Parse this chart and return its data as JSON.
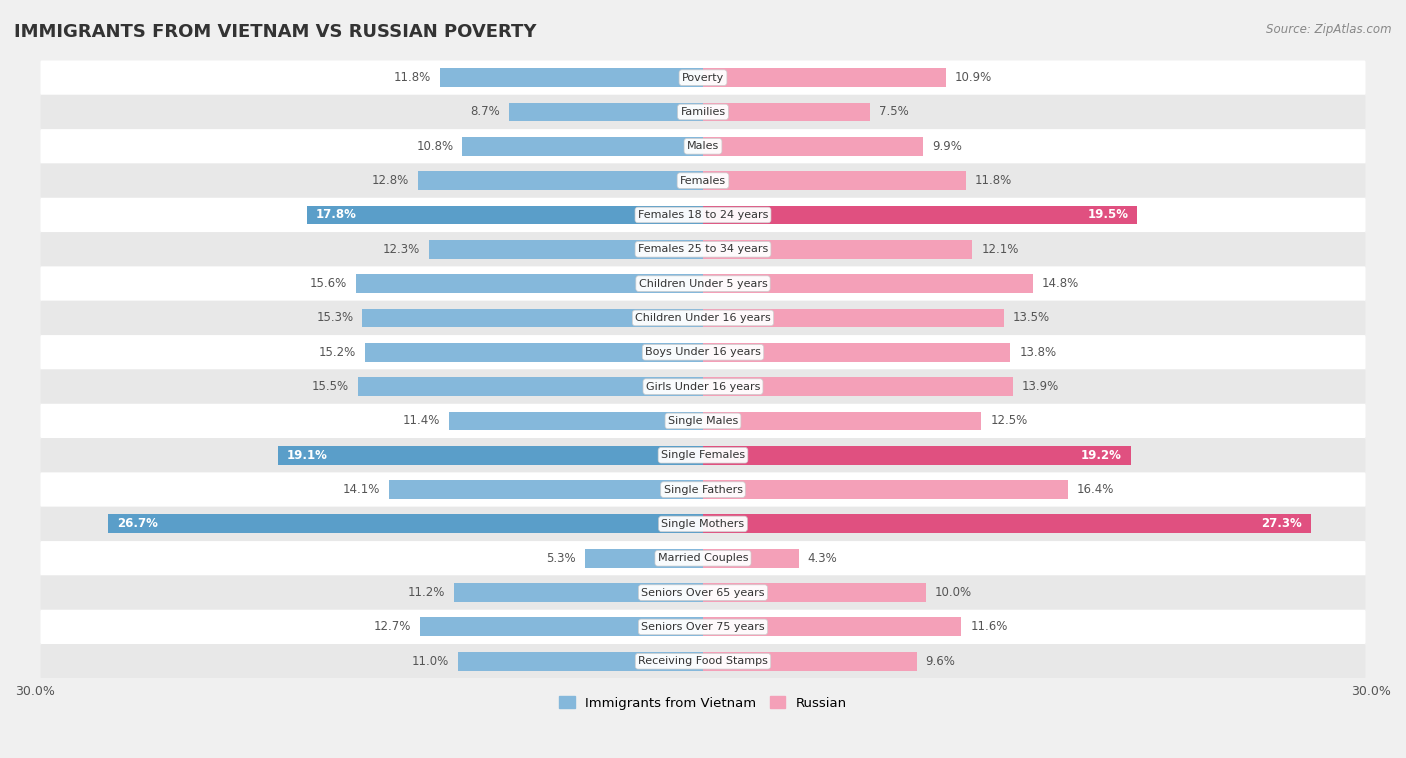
{
  "title": "IMMIGRANTS FROM VIETNAM VS RUSSIAN POVERTY",
  "source": "Source: ZipAtlas.com",
  "categories": [
    "Poverty",
    "Families",
    "Males",
    "Females",
    "Females 18 to 24 years",
    "Females 25 to 34 years",
    "Children Under 5 years",
    "Children Under 16 years",
    "Boys Under 16 years",
    "Girls Under 16 years",
    "Single Males",
    "Single Females",
    "Single Fathers",
    "Single Mothers",
    "Married Couples",
    "Seniors Over 65 years",
    "Seniors Over 75 years",
    "Receiving Food Stamps"
  ],
  "vietnam_values": [
    11.8,
    8.7,
    10.8,
    12.8,
    17.8,
    12.3,
    15.6,
    15.3,
    15.2,
    15.5,
    11.4,
    19.1,
    14.1,
    26.7,
    5.3,
    11.2,
    12.7,
    11.0
  ],
  "russian_values": [
    10.9,
    7.5,
    9.9,
    11.8,
    19.5,
    12.1,
    14.8,
    13.5,
    13.8,
    13.9,
    12.5,
    19.2,
    16.4,
    27.3,
    4.3,
    10.0,
    11.6,
    9.6
  ],
  "vietnam_color": "#85b8db",
  "russian_color": "#f4a0b8",
  "vietnam_label": "Immigrants from Vietnam",
  "russian_label": "Russian",
  "axis_max": 30.0,
  "background_color": "#f0f0f0",
  "row_color_even": "#ffffff",
  "row_color_odd": "#e8e8e8",
  "bar_height": 0.55,
  "label_fontsize": 8.5,
  "title_fontsize": 13,
  "highlight_indices": [
    4,
    11,
    13
  ],
  "vietnam_highlight_color": "#5a9ec9",
  "russian_highlight_color": "#e05080"
}
